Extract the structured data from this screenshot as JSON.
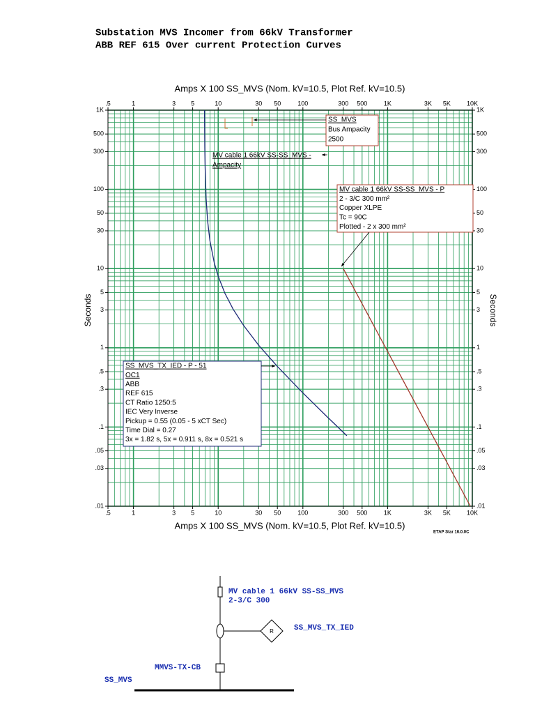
{
  "header": {
    "lines": [
      "Substation MVS Incomer from 66kV Transformer",
      "ABB REF 615 Over current Protection Curves"
    ]
  },
  "chart_data": {
    "type": "line",
    "xlabel": "Amps  X  100   SS_MVS (Nom. kV=10.5, Plot Ref. kV=10.5)",
    "ylabel": "Seconds",
    "log_x": true,
    "log_y": true,
    "grid": true,
    "minor_grid": true,
    "grid_color": "#2e9e5e",
    "xlim": [
      0.5,
      10000
    ],
    "ylim": [
      0.01,
      1000
    ],
    "xticks": [
      {
        "value": 0.5,
        "label": ".5"
      },
      1,
      3,
      5,
      10,
      30,
      50,
      100,
      300,
      500,
      {
        "value": 1000,
        "label": "1K"
      },
      {
        "value": 3000,
        "label": "3K"
      },
      {
        "value": 5000,
        "label": "5K"
      },
      {
        "value": 10000,
        "label": "10K"
      }
    ],
    "yticks": [
      {
        "value": 0.01,
        "label": ".01"
      },
      {
        "value": 0.03,
        "label": ".03"
      },
      {
        "value": 0.05,
        "label": ".05"
      },
      {
        "value": 0.1,
        "label": ".1"
      },
      {
        "value": 0.3,
        "label": ".3"
      },
      {
        "value": 0.5,
        "label": ".5"
      },
      1,
      3,
      5,
      10,
      30,
      50,
      100,
      300,
      500,
      {
        "value": 1000,
        "label": "1K"
      }
    ],
    "series": [
      {
        "color": "#1f2a78",
        "x": [
          6.9,
          6.95,
          7,
          7.2,
          7.5,
          8,
          9,
          10,
          12,
          15,
          20,
          30,
          50,
          100,
          200,
          330
        ],
        "values": [
          1000,
          334,
          200.5,
          77.1,
          40.1,
          22.3,
          11.8,
          8.02,
          4.89,
          3.08,
          1.91,
          1.08,
          0.581,
          0.269,
          0.13,
          0.0776
        ]
      },
      {
        "color": "#a3372c",
        "x": [
          300,
          9490
        ],
        "values": [
          10,
          0.01
        ]
      }
    ],
    "annotations": [
      {
        "lines": [
          "SS_MVS",
          "Bus Ampacity",
          "2500"
        ]
      },
      {
        "lines": [
          "MV cable 1 66kV SS-SS_MVS -",
          "Ampacity"
        ]
      },
      {
        "lines": [
          "MV cable 1 66kV SS-SS_MVS - P",
          "2 - 3/C 300 mm²",
          "Copper  XLPE",
          "Tc = 90C",
          "Plotted - 2 x 300 mm²"
        ]
      },
      {
        "lines": [
          "SS_MVS_TX_IED - P - 51",
          "OC1",
          "ABB",
          "REF 615",
          "CT Ratio 1250:5",
          "IEC Very Inverse",
          "Pickup = 0.55 (0.05 - 5  xCT Sec)",
          "Time Dial = 0.27",
          "3x = 1.82 s, 5x = 0.911 s, 8x = 0.521 s"
        ]
      }
    ],
    "footer": "ETAP Star 16.0.0C"
  },
  "diagram": {
    "cable": "MV cable 1 66kV SS-SS_MVS",
    "cable_size": "2-3/C 300",
    "relay": "SS_MVS_TX_IED",
    "relay_symbol": "R",
    "breaker": "MMVS-TX-CB",
    "bus": "SS_MVS"
  }
}
